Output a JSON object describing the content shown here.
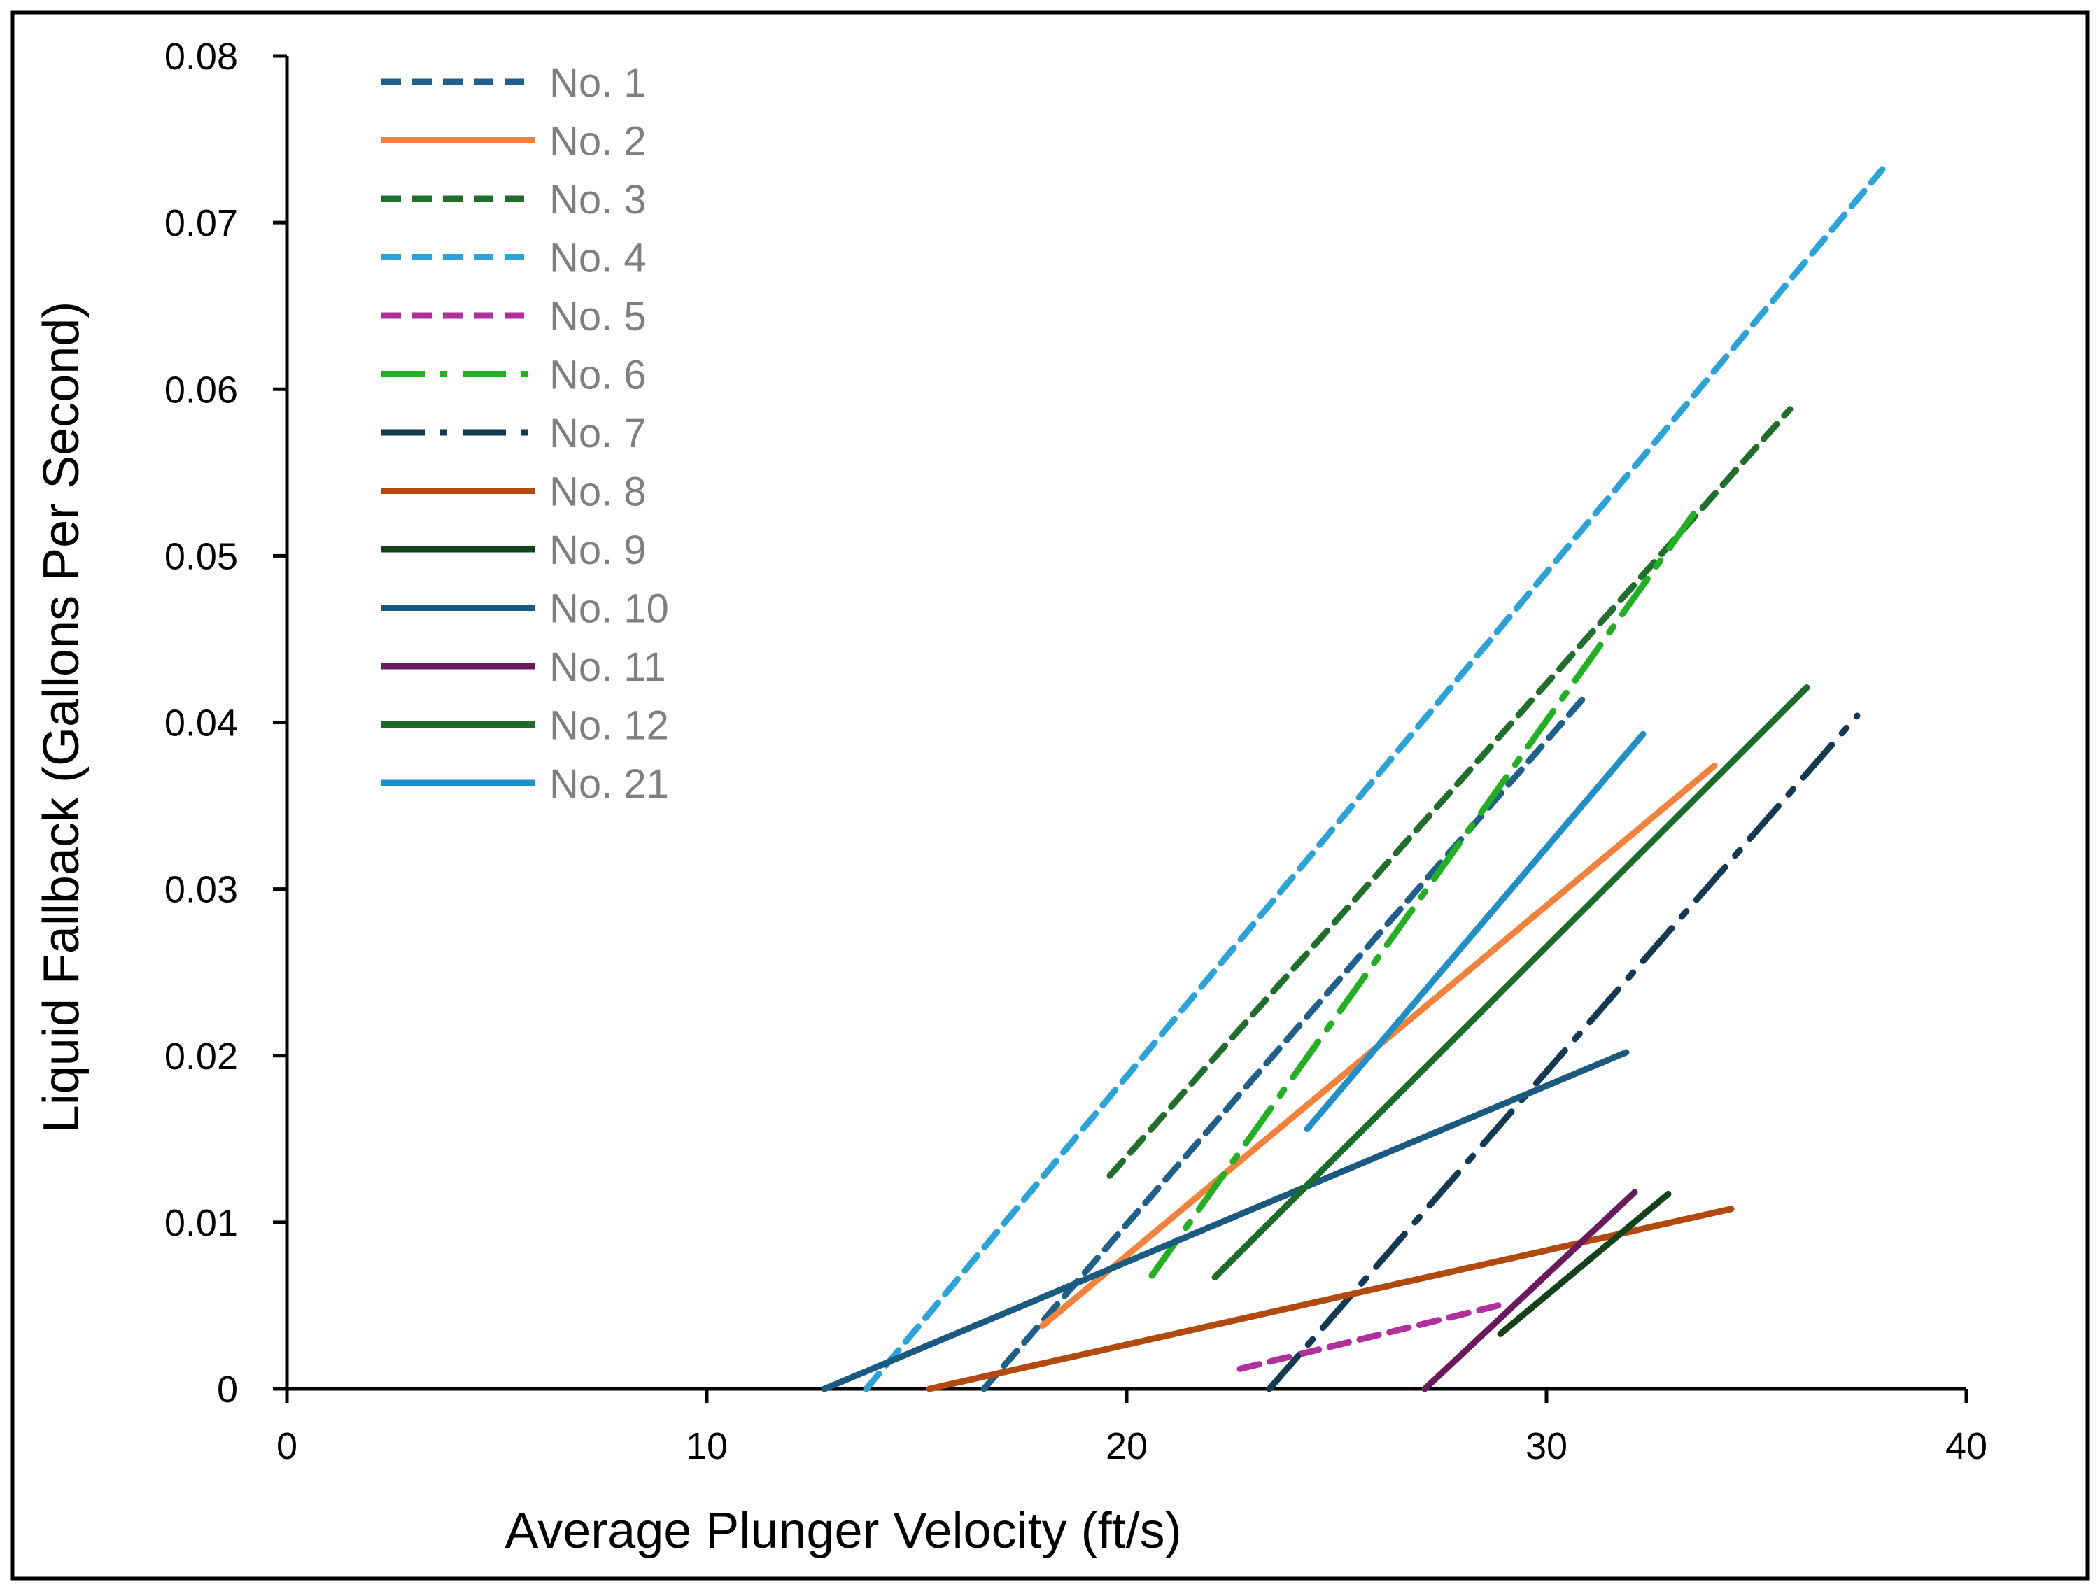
{
  "chart_data": {
    "type": "line",
    "title": "",
    "xlabel": "Average Plunger Velocity (ft/s)",
    "ylabel": "Liquid Fallback (Gallons Per Second)",
    "xlim": [
      0,
      40
    ],
    "ylim": [
      0,
      0.08
    ],
    "x_ticks": [
      "0",
      "10",
      "20",
      "30",
      "40"
    ],
    "x_tick_values": [
      0,
      10,
      20,
      30,
      40
    ],
    "y_ticks": [
      "0",
      "0.01",
      "0.02",
      "0.03",
      "0.04",
      "0.05",
      "0.06",
      "0.07",
      "0.08"
    ],
    "y_tick_values": [
      0,
      0.01,
      0.02,
      0.03,
      0.04,
      0.05,
      0.06,
      0.07,
      0.08
    ],
    "grid": false,
    "legend_position": "top-left",
    "series": [
      {
        "name": "No. 1",
        "color": "#1f5f8b",
        "dash": "dashed",
        "x": [
          16.6,
          31.0
        ],
        "y": [
          0.0,
          0.0418
        ]
      },
      {
        "name": "No. 2",
        "color": "#f4813a",
        "dash": "solid",
        "x": [
          18.0,
          34.0
        ],
        "y": [
          0.0038,
          0.0374
        ]
      },
      {
        "name": "No. 3",
        "color": "#1f6e2a",
        "dash": "dashed",
        "x": [
          19.6,
          35.8
        ],
        "y": [
          0.0128,
          0.0588
        ]
      },
      {
        "name": "No. 4",
        "color": "#29a3d9",
        "dash": "dashed",
        "x": [
          13.8,
          38.0
        ],
        "y": [
          0.0,
          0.0732
        ]
      },
      {
        "name": "No. 5",
        "color": "#b0309e",
        "dash": "dashed",
        "x": [
          22.7,
          29.0
        ],
        "y": [
          0.0012,
          0.0051
        ]
      },
      {
        "name": "No. 6",
        "color": "#20b020",
        "dash": "dashdot",
        "x": [
          20.6,
          33.5
        ],
        "y": [
          0.0068,
          0.0525
        ]
      },
      {
        "name": "No. 7",
        "color": "#123a52",
        "dash": "dashdot",
        "x": [
          23.4,
          37.4
        ],
        "y": [
          0.0,
          0.0404
        ]
      },
      {
        "name": "No. 8",
        "color": "#b24a10",
        "dash": "solid",
        "x": [
          15.3,
          34.4
        ],
        "y": [
          0.0,
          0.0108
        ]
      },
      {
        "name": "No. 9",
        "color": "#12421a",
        "dash": "solid",
        "x": [
          28.9,
          32.9
        ],
        "y": [
          0.0033,
          0.0117
        ]
      },
      {
        "name": "No. 10",
        "color": "#1a5a80",
        "dash": "solid",
        "x": [
          12.8,
          31.9
        ],
        "y": [
          0.0,
          0.0202
        ]
      },
      {
        "name": "No. 11",
        "color": "#6a1a5c",
        "dash": "solid",
        "x": [
          27.1,
          32.1
        ],
        "y": [
          0.0,
          0.0118
        ]
      },
      {
        "name": "No. 12",
        "color": "#1a6c28",
        "dash": "solid",
        "x": [
          22.1,
          36.2
        ],
        "y": [
          0.0067,
          0.0421
        ]
      },
      {
        "name": "No. 21",
        "color": "#1e8fc8",
        "dash": "solid",
        "x": [
          24.3,
          32.3
        ],
        "y": [
          0.0156,
          0.0393
        ]
      }
    ]
  }
}
